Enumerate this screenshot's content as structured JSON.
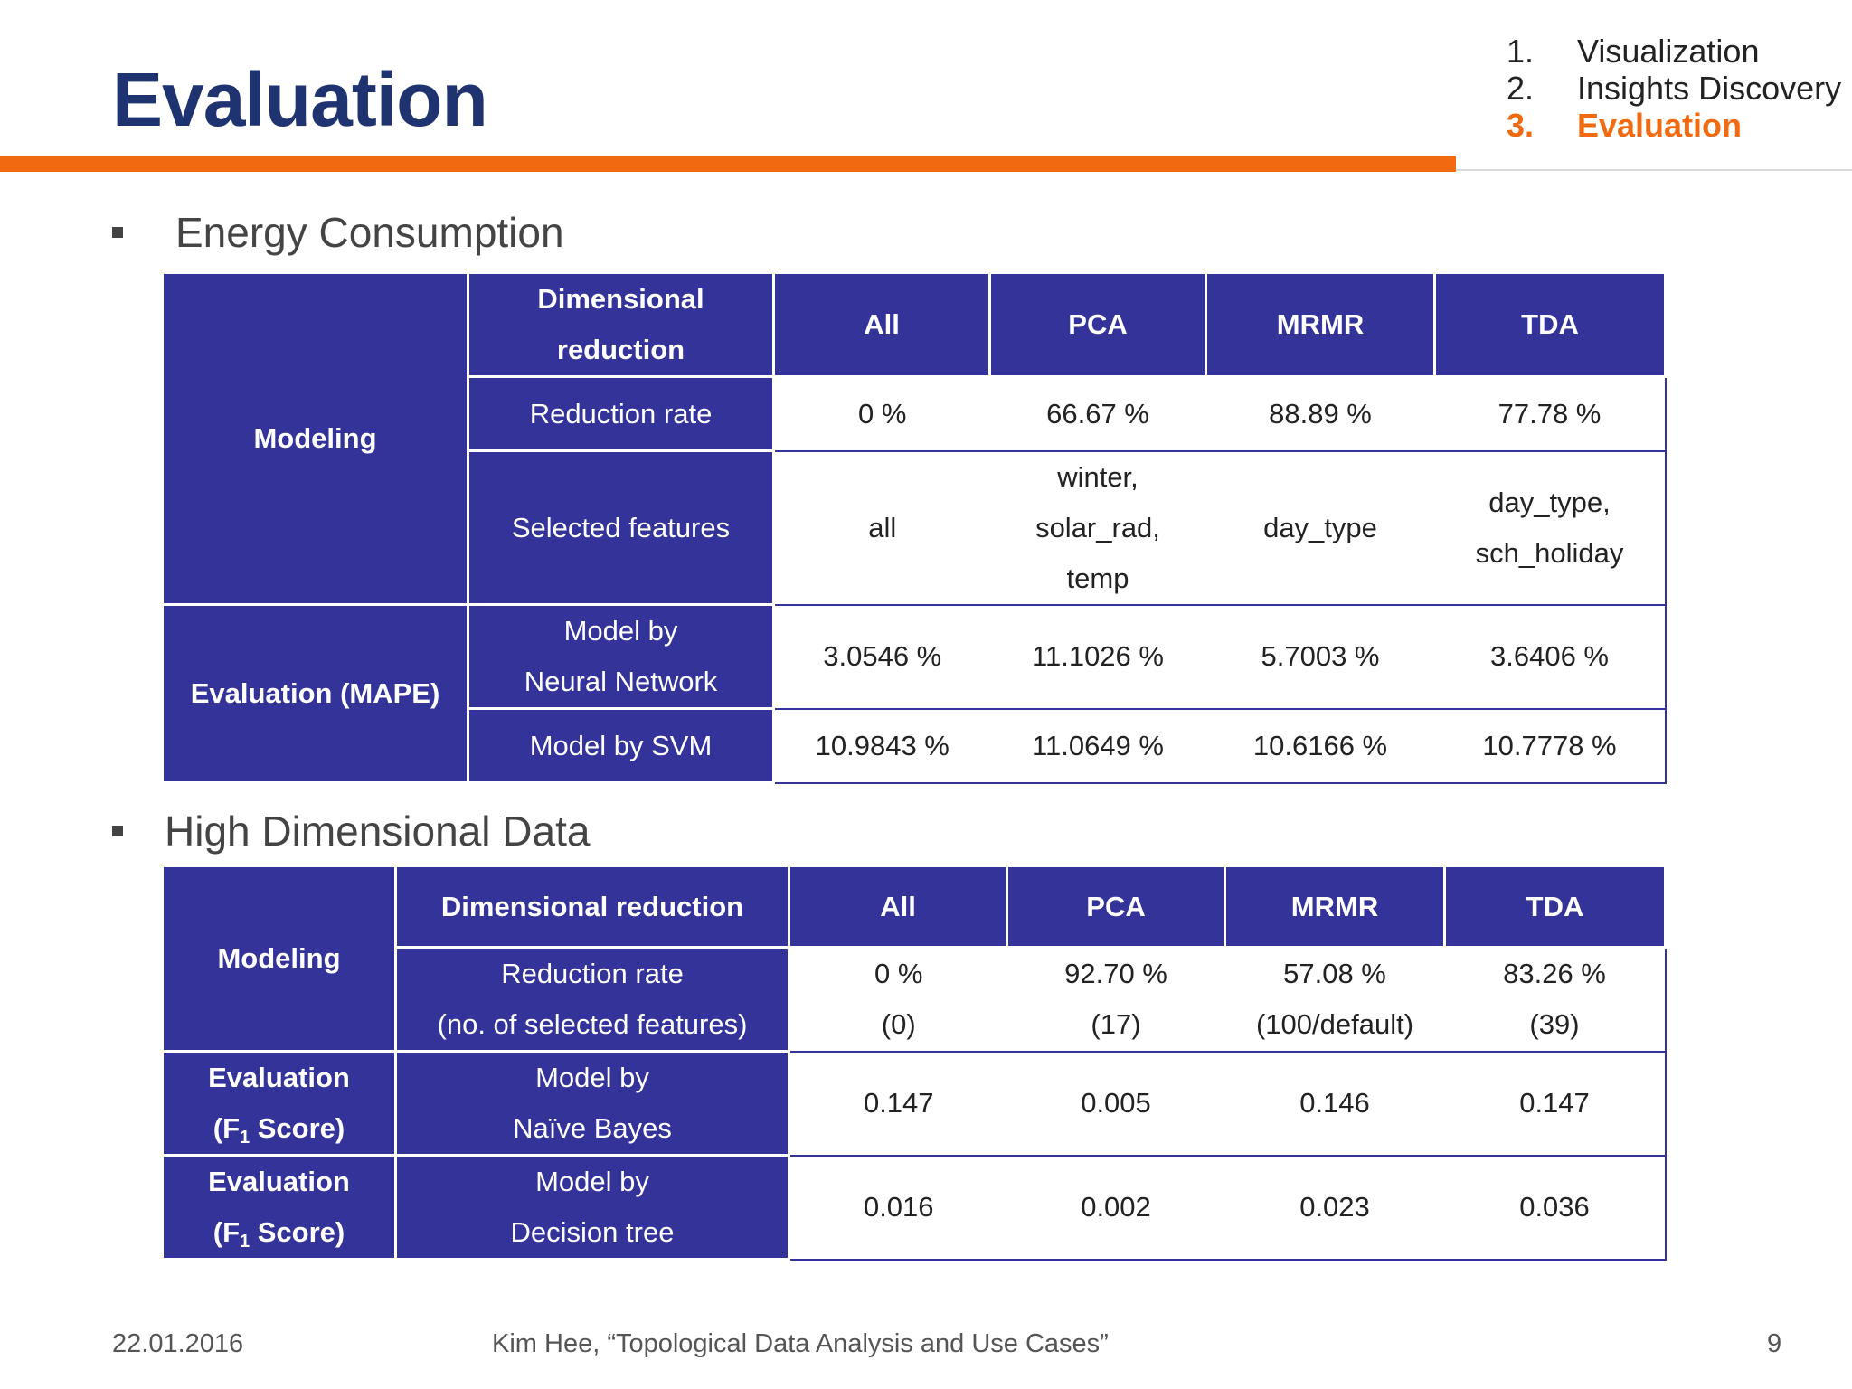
{
  "title": "Evaluation",
  "nav": [
    {
      "num": "1.",
      "label": "Visualization"
    },
    {
      "num": "2.",
      "label": "Insights Discovery"
    },
    {
      "num": "3.",
      "label": "Evaluation"
    }
  ],
  "section1": {
    "heading": "Energy Consumption",
    "modeling": "Modeling",
    "evaluation": "Evaluation (MAPE)",
    "dim_line1": "Dimensional",
    "dim_line2": "reduction",
    "columns": [
      "All",
      "PCA",
      "MRMR",
      "TDA"
    ],
    "reduction_rate_label": "Reduction rate",
    "reduction_rate": [
      "0 %",
      "66.67 %",
      "88.89 %",
      "77.78 %"
    ],
    "selected_features_label": "Selected features",
    "selected_features": [
      [
        "all"
      ],
      [
        "winter,",
        "solar_rad,",
        "temp"
      ],
      [
        "day_type"
      ],
      [
        "day_type,",
        "sch_holiday"
      ]
    ],
    "nn_label_1": "Model by",
    "nn_label_2": "Neural Network",
    "nn_values": [
      "3.0546 %",
      "11.1026 %",
      "5.7003 %",
      "3.6406 %"
    ],
    "svm_label": "Model by SVM",
    "svm_values": [
      "10.9843 %",
      "11.0649 %",
      "10.6166 %",
      "10.7778 %"
    ]
  },
  "section2": {
    "heading": "High Dimensional Data",
    "modeling": "Modeling",
    "dim_reduction": "Dimensional reduction",
    "columns": [
      "All",
      "PCA",
      "MRMR",
      "TDA"
    ],
    "rr_label_1": "Reduction rate",
    "rr_label_2": "(no. of selected features)",
    "rr_values": [
      "0 %",
      "92.70 %",
      "57.08 %",
      "83.26 %"
    ],
    "rr_counts": [
      "(0)",
      "(17)",
      "(100/default)",
      "(39)"
    ],
    "eval_label_1": "Evaluation",
    "eval_label_2a": "(F",
    "eval_label_sub": "1",
    "eval_label_2b": " Score)",
    "nb_label_1": "Model by",
    "nb_label_2": "Naïve Bayes",
    "nb_values": [
      "0.147",
      "0.005",
      "0.146",
      "0.147"
    ],
    "dt_label_1": "Model by",
    "dt_label_2": "Decision tree",
    "dt_values": [
      "0.016",
      "0.002",
      "0.023",
      "0.036"
    ]
  },
  "footer": {
    "date": "22.01.2016",
    "citation": "Kim Hee, “Topological Data Analysis and Use Cases”",
    "page": "9"
  }
}
